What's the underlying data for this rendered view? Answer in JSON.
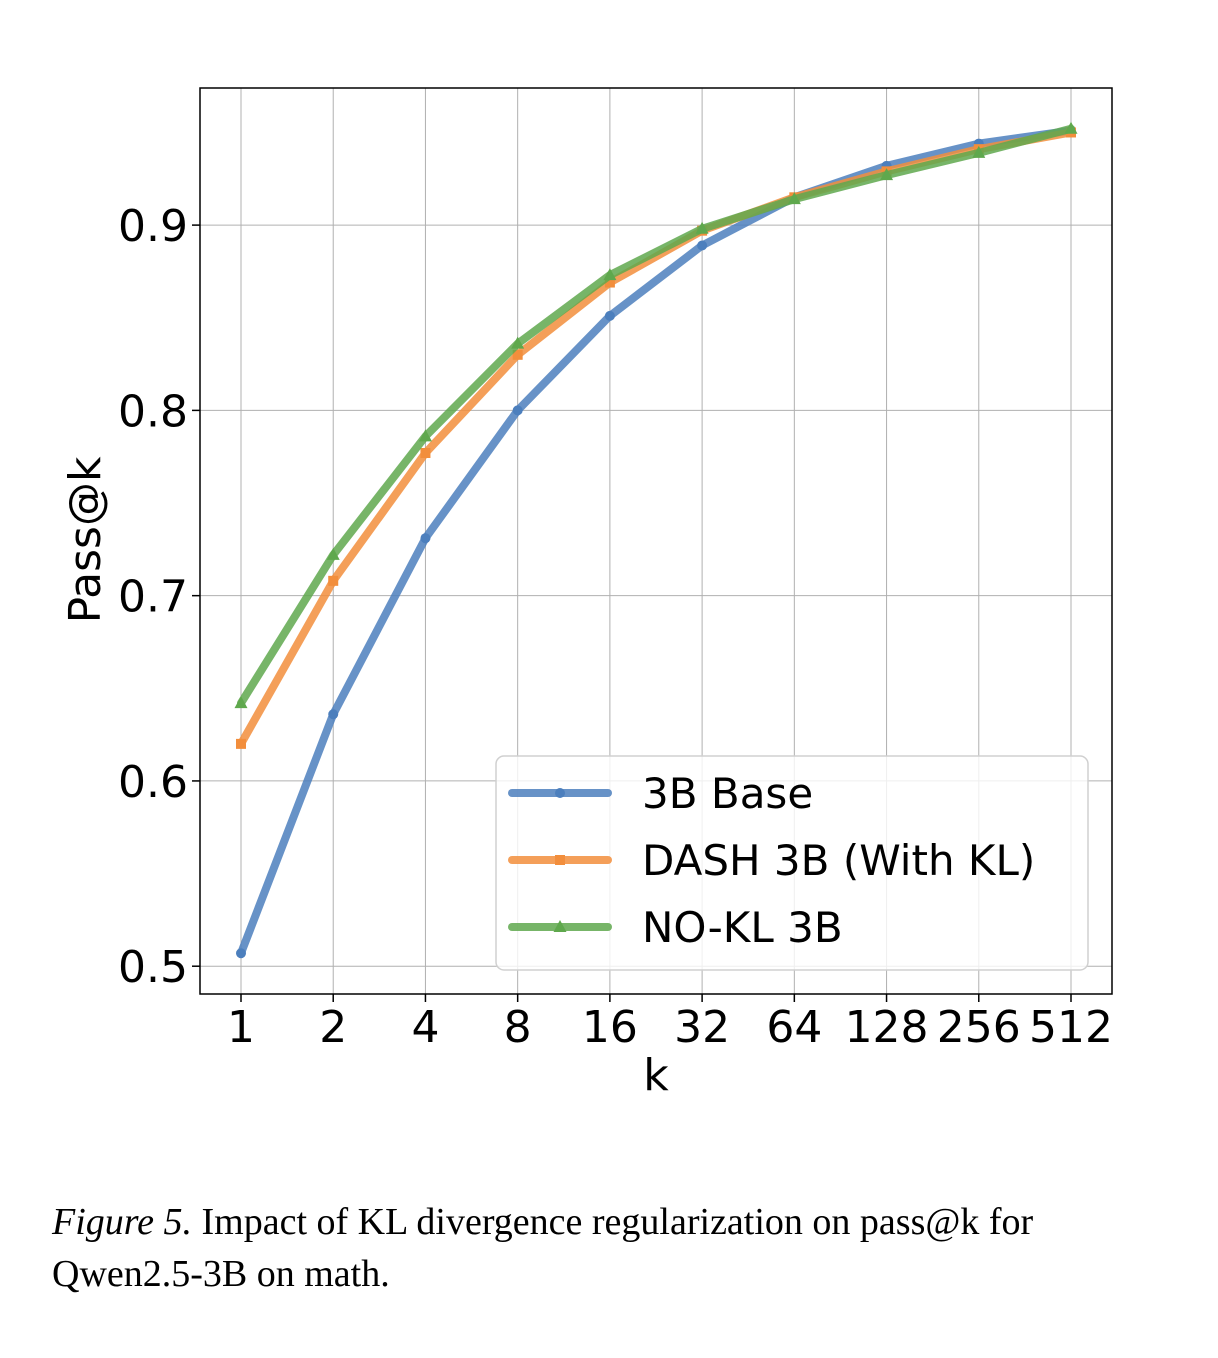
{
  "chart_data": {
    "type": "line",
    "xlabel": "k",
    "ylabel": "Pass@k",
    "categories": [
      "1",
      "2",
      "4",
      "8",
      "16",
      "32",
      "64",
      "128",
      "256",
      "512"
    ],
    "x_scale": "log2",
    "ylim": [
      0.485,
      0.974
    ],
    "yticks": [
      "0.5",
      "0.6",
      "0.7",
      "0.8",
      "0.9"
    ],
    "grid": true,
    "legend_position": "lower-right",
    "series": [
      {
        "name": "3B Base",
        "color": "#4C7FBD",
        "marker": "circle",
        "values": [
          0.507,
          0.636,
          0.731,
          0.8,
          0.851,
          0.889,
          0.915,
          0.932,
          0.944,
          0.951
        ]
      },
      {
        "name": "DASH 3B (With KL)",
        "color": "#F28E3C",
        "marker": "square",
        "values": [
          0.62,
          0.708,
          0.777,
          0.83,
          0.869,
          0.897,
          0.915,
          0.929,
          0.941,
          0.95
        ]
      },
      {
        "name": "NO-KL 3B",
        "color": "#5FA84D",
        "marker": "triangle",
        "values": [
          0.642,
          0.722,
          0.786,
          0.836,
          0.873,
          0.898,
          0.914,
          0.927,
          0.939,
          0.952
        ]
      }
    ]
  },
  "caption": {
    "label": "Figure 5.",
    "text": " Impact of KL divergence regularization on pass@k for Qwen2.5-3B on math."
  }
}
